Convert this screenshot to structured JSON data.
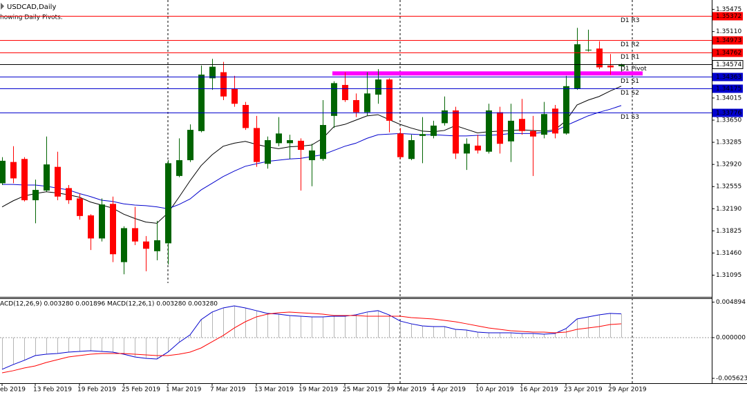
{
  "window": {
    "symbol_label": "USDCAD,Daily",
    "indicator_note": "howing Daily Pivots."
  },
  "chart_data": [
    {
      "type": "candlestick",
      "categories": [
        "eb 2019",
        null,
        null,
        "13 Feb 2019",
        null,
        null,
        null,
        "19 Feb 2019",
        null,
        null,
        null,
        "25 Feb 2019",
        null,
        null,
        null,
        "1 Mar 2019",
        null,
        null,
        null,
        "7 Mar 2019",
        null,
        null,
        null,
        "13 Mar 2019",
        null,
        null,
        null,
        "19 Mar 2019",
        null,
        null,
        null,
        "25 Mar 2019",
        null,
        null,
        null,
        "29 Mar 2019",
        null,
        null,
        null,
        "4 Apr 2019",
        null,
        null,
        null,
        "10 Apr 2019",
        null,
        null,
        null,
        "16 Apr 2019",
        null,
        null,
        null,
        "23 Apr 2019",
        null,
        null,
        null,
        "29 Apr 2019",
        null
      ],
      "open": [
        1.3261,
        1.3296,
        1.3301,
        1.3233,
        1.3249,
        1.3288,
        1.3253,
        1.3236,
        1.3208,
        1.317,
        1.3227,
        1.3131,
        1.3187,
        1.3165,
        1.3149,
        1.3162,
        1.3273,
        1.3299,
        1.3347,
        1.3434,
        1.3444,
        1.3417,
        1.339,
        1.3352,
        1.3293,
        1.3327,
        1.3327,
        1.3331,
        1.3299,
        1.3301,
        1.3372,
        1.3423,
        1.3398,
        1.3378,
        1.3407,
        1.3432,
        1.3343,
        1.3301,
        1.3339,
        1.3339,
        1.336,
        1.3381,
        1.331,
        1.3323,
        1.3313,
        1.3378,
        1.333,
        1.3367,
        1.3347,
        1.3341,
        1.3384,
        1.3343,
        1.3417,
        1.348,
        1.3483,
        1.3455,
        1.3454
      ],
      "high": [
        1.3304,
        1.3322,
        1.3304,
        1.3267,
        1.3338,
        1.3313,
        1.3258,
        1.3244,
        1.321,
        1.3236,
        1.3239,
        1.319,
        1.3222,
        1.3174,
        1.3199,
        1.3299,
        1.3335,
        1.3358,
        1.3455,
        1.3466,
        1.3461,
        1.3438,
        1.3395,
        1.3372,
        1.3338,
        1.337,
        1.3341,
        1.3335,
        1.3326,
        1.3398,
        1.3429,
        1.3444,
        1.3409,
        1.3444,
        1.3449,
        1.3434,
        1.3352,
        1.3341,
        1.337,
        1.3364,
        1.3404,
        1.3387,
        1.3335,
        1.3341,
        1.3392,
        1.3387,
        1.3392,
        1.34,
        1.3372,
        1.3395,
        1.339,
        1.3438,
        1.3517,
        1.3514,
        1.3495,
        1.3474,
        1.3458
      ],
      "low": [
        1.3258,
        1.3261,
        1.3231,
        1.3195,
        1.3247,
        1.3233,
        1.3227,
        1.3201,
        1.3151,
        1.3165,
        1.3131,
        1.3111,
        1.3159,
        1.3116,
        1.3134,
        1.3127,
        1.3271,
        1.3296,
        1.3345,
        1.3415,
        1.3398,
        1.3387,
        1.3349,
        1.3288,
        1.3285,
        1.3322,
        1.3301,
        1.3249,
        1.3256,
        1.3298,
        1.3352,
        1.3395,
        1.337,
        1.3372,
        1.3392,
        1.3345,
        1.3301,
        1.3299,
        1.3294,
        1.3335,
        1.3356,
        1.3301,
        1.3283,
        1.331,
        1.331,
        1.331,
        1.3296,
        1.3341,
        1.3273,
        1.3335,
        1.3335,
        1.3341,
        1.3415,
        1.3478,
        1.3449,
        1.344,
        1.3445
      ],
      "close": [
        1.3298,
        1.3269,
        1.3233,
        1.325,
        1.3292,
        1.3239,
        1.3233,
        1.3207,
        1.317,
        1.3226,
        1.3144,
        1.3187,
        1.3165,
        1.3153,
        1.3167,
        1.3294,
        1.3299,
        1.3349,
        1.344,
        1.3453,
        1.3404,
        1.3392,
        1.3352,
        1.3296,
        1.3332,
        1.3343,
        1.3332,
        1.3316,
        1.3315,
        1.3357,
        1.3426,
        1.3398,
        1.3378,
        1.3409,
        1.3432,
        1.3364,
        1.3304,
        1.3332,
        1.3342,
        1.3356,
        1.3381,
        1.331,
        1.3326,
        1.3315,
        1.3381,
        1.3326,
        1.3364,
        1.3347,
        1.3338,
        1.3375,
        1.3343,
        1.3421,
        1.349,
        1.3481,
        1.3452,
        1.3452,
        1.3457
      ],
      "up_color": "#006400",
      "down_color": "#ff0000",
      "series": [
        {
          "color": "#000000",
          "values": [
            1.3222,
            1.3232,
            1.324,
            1.3244,
            1.3247,
            1.3245,
            1.3242,
            1.3238,
            1.323,
            1.3225,
            1.322,
            1.321,
            1.3203,
            1.3197,
            1.3195,
            1.3212,
            1.3238,
            1.3265,
            1.329,
            1.3308,
            1.3322,
            1.3327,
            1.333,
            1.3325,
            1.3321,
            1.3318,
            1.3321,
            1.3322,
            1.3324,
            1.3335,
            1.3354,
            1.3358,
            1.3365,
            1.3372,
            1.3374,
            1.3366,
            1.3358,
            1.3352,
            1.3347,
            1.3346,
            1.3348,
            1.3356,
            1.335,
            1.3344,
            1.3346,
            1.3347,
            1.3348,
            1.3349,
            1.3348,
            1.3347,
            1.3349,
            1.3364,
            1.339,
            1.3398,
            1.3404,
            1.3413,
            1.3421
          ]
        },
        {
          "color": "#0000cd",
          "values": [
            1.3259,
            1.3259,
            1.3258,
            1.3258,
            1.3256,
            1.3253,
            1.325,
            1.3244,
            1.3239,
            1.3233,
            1.3231,
            1.3227,
            1.3225,
            1.3224,
            1.3222,
            1.3219,
            1.3226,
            1.3235,
            1.325,
            1.3261,
            1.3272,
            1.3281,
            1.3289,
            1.3293,
            1.3297,
            1.3299,
            1.3301,
            1.3302,
            1.3305,
            1.3308,
            1.3315,
            1.3322,
            1.3327,
            1.3335,
            1.3341,
            1.3342,
            1.3343,
            1.3342,
            1.3341,
            1.3341,
            1.334,
            1.3339,
            1.3339,
            1.334,
            1.334,
            1.3341,
            1.3343,
            1.3343,
            1.3343,
            1.3345,
            1.3347,
            1.3356,
            1.3364,
            1.3372,
            1.3378,
            1.3383,
            1.3389
          ]
        }
      ],
      "levels": [
        {
          "name": "D1 R3",
          "value": 1.35372,
          "color": "#ff0000"
        },
        {
          "name": "D1 R2",
          "value": 1.34973,
          "color": "#ff0000"
        },
        {
          "name": "D1 R1",
          "value": 1.34762,
          "color": "#ff0000"
        },
        {
          "name": "D1 Pivot",
          "value": 1.34574,
          "color": "#000000"
        },
        {
          "name": "D1 S1",
          "value": 1.34363,
          "color": "#0000cd"
        },
        {
          "name": "D1 S2",
          "value": 1.34175,
          "color": "#0000cd"
        },
        {
          "name": "D1 S3",
          "value": 1.33776,
          "color": "#0000cd"
        }
      ],
      "highlight": {
        "value": 1.3442,
        "color": "#ff00ff"
      },
      "ylim": [
        1.30737,
        1.3563
      ],
      "yticks": [
        1.35475,
        {
          "value": 1.3511,
          "label": "1.35110"
        },
        1.34015,
        {
          "value": 1.3365,
          "label": "1.33650"
        },
        1.33285,
        {
          "value": 1.3292,
          "label": "1.32920"
        },
        1.32555,
        {
          "value": 1.3219,
          "label": "1.32190"
        },
        1.31825,
        {
          "value": 1.3146,
          "label": "1.31460"
        },
        1.31095
      ]
    },
    {
      "type": "macd",
      "title": "ACD(12,26,9) 0.003280 0.001896 MACD(12,26,1) 0.003280 0.003280",
      "histogram_color": "#b4b4b4",
      "series": [
        {
          "color": "#0000cd",
          "values": [
            -0.00438,
            -0.00372,
            -0.00314,
            -0.00248,
            -0.00229,
            -0.00219,
            -0.002,
            -0.00191,
            -0.00181,
            -0.00191,
            -0.002,
            -0.00229,
            -0.00267,
            -0.00286,
            -0.00295,
            -0.002,
            -0.00067,
            0.00038,
            0.00248,
            0.00353,
            0.0041,
            0.00438,
            0.0041,
            0.00372,
            0.00334,
            0.00324,
            0.00305,
            0.00295,
            0.00286,
            0.00286,
            0.00295,
            0.00295,
            0.00314,
            0.00353,
            0.00372,
            0.00314,
            0.00229,
            0.00191,
            0.00162,
            0.00152,
            0.00152,
            0.00114,
            0.00105,
            0.00076,
            0.00067,
            0.00067,
            0.00067,
            0.00057,
            0.00057,
            0.00048,
            0.00057,
            0.00124,
            0.00257,
            0.00286,
            0.00314,
            0.00334,
            0.00328
          ]
        },
        {
          "color": "#ff0000",
          "values": [
            -0.00486,
            -0.00457,
            -0.00419,
            -0.00391,
            -0.00343,
            -0.00305,
            -0.00267,
            -0.00248,
            -0.00229,
            -0.00219,
            -0.00219,
            -0.00219,
            -0.00229,
            -0.00238,
            -0.00248,
            -0.00248,
            -0.00229,
            -0.002,
            -0.00143,
            -0.00057,
            0.00029,
            0.00133,
            0.00219,
            0.00286,
            0.00324,
            0.00343,
            0.00353,
            0.00343,
            0.00334,
            0.00324,
            0.00305,
            0.00305,
            0.00305,
            0.00295,
            0.00295,
            0.00295,
            0.00295,
            0.00276,
            0.00267,
            0.00257,
            0.00238,
            0.00219,
            0.00191,
            0.00162,
            0.00133,
            0.00114,
            0.00095,
            0.00086,
            0.00076,
            0.00076,
            0.00067,
            0.00076,
            0.00114,
            0.00133,
            0.00152,
            0.00181,
            0.0019
          ]
        }
      ],
      "ylim": [
        -0.00629,
        0.00543
      ],
      "yticks": [
        0.004894,
        {
          "value": 0,
          "label": "0.000000"
        },
        -0.005623
      ]
    }
  ]
}
